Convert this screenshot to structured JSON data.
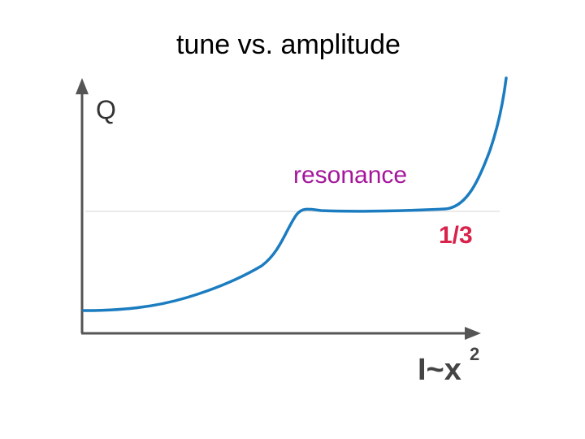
{
  "title": "tune vs. amplitude",
  "y_axis_label": "Q",
  "annotation": "resonance",
  "resonance_label": "1/3",
  "x_axis_label": {
    "base": "I~x",
    "superscript": "2"
  }
}
